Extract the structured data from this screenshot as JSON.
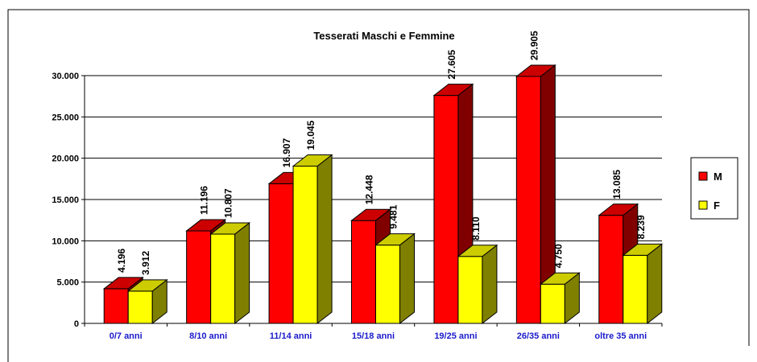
{
  "chart_data": {
    "type": "bar3d",
    "title": "Tesserati Maschi e Femmine",
    "categories": [
      "0/7 anni",
      "8/10 anni",
      "11/14 anni",
      "15/18 anni",
      "19/25 anni",
      "26/35 anni",
      "oltre 35 anni"
    ],
    "series": [
      {
        "name": "M",
        "color": "#ff0000",
        "values": [
          4196,
          11196,
          16907,
          12448,
          27605,
          29905,
          13085
        ],
        "value_labels": [
          "4.196",
          "11.196",
          "16.907",
          "12.448",
          "27.605",
          "29.905",
          "13.085"
        ]
      },
      {
        "name": "F",
        "color": "#ffff00",
        "values": [
          3912,
          10807,
          19045,
          9481,
          8110,
          4750,
          8239
        ],
        "value_labels": [
          "3.912",
          "10.807",
          "19.045",
          "9.481",
          "8.110",
          "4.750",
          "8.239"
        ]
      }
    ],
    "ylim": [
      0,
      30000
    ],
    "yticks": [
      0,
      {
        "value": 5000,
        "label": "5.000"
      },
      {
        "value": 10000,
        "label": "10.000"
      },
      {
        "value": 15000,
        "label": "15.000"
      },
      {
        "value": 20000,
        "label": "20.000"
      },
      {
        "value": 25000,
        "label": "25.000"
      },
      {
        "value": 30000,
        "label": "30.000"
      }
    ],
    "grid": true,
    "legend": "right"
  }
}
